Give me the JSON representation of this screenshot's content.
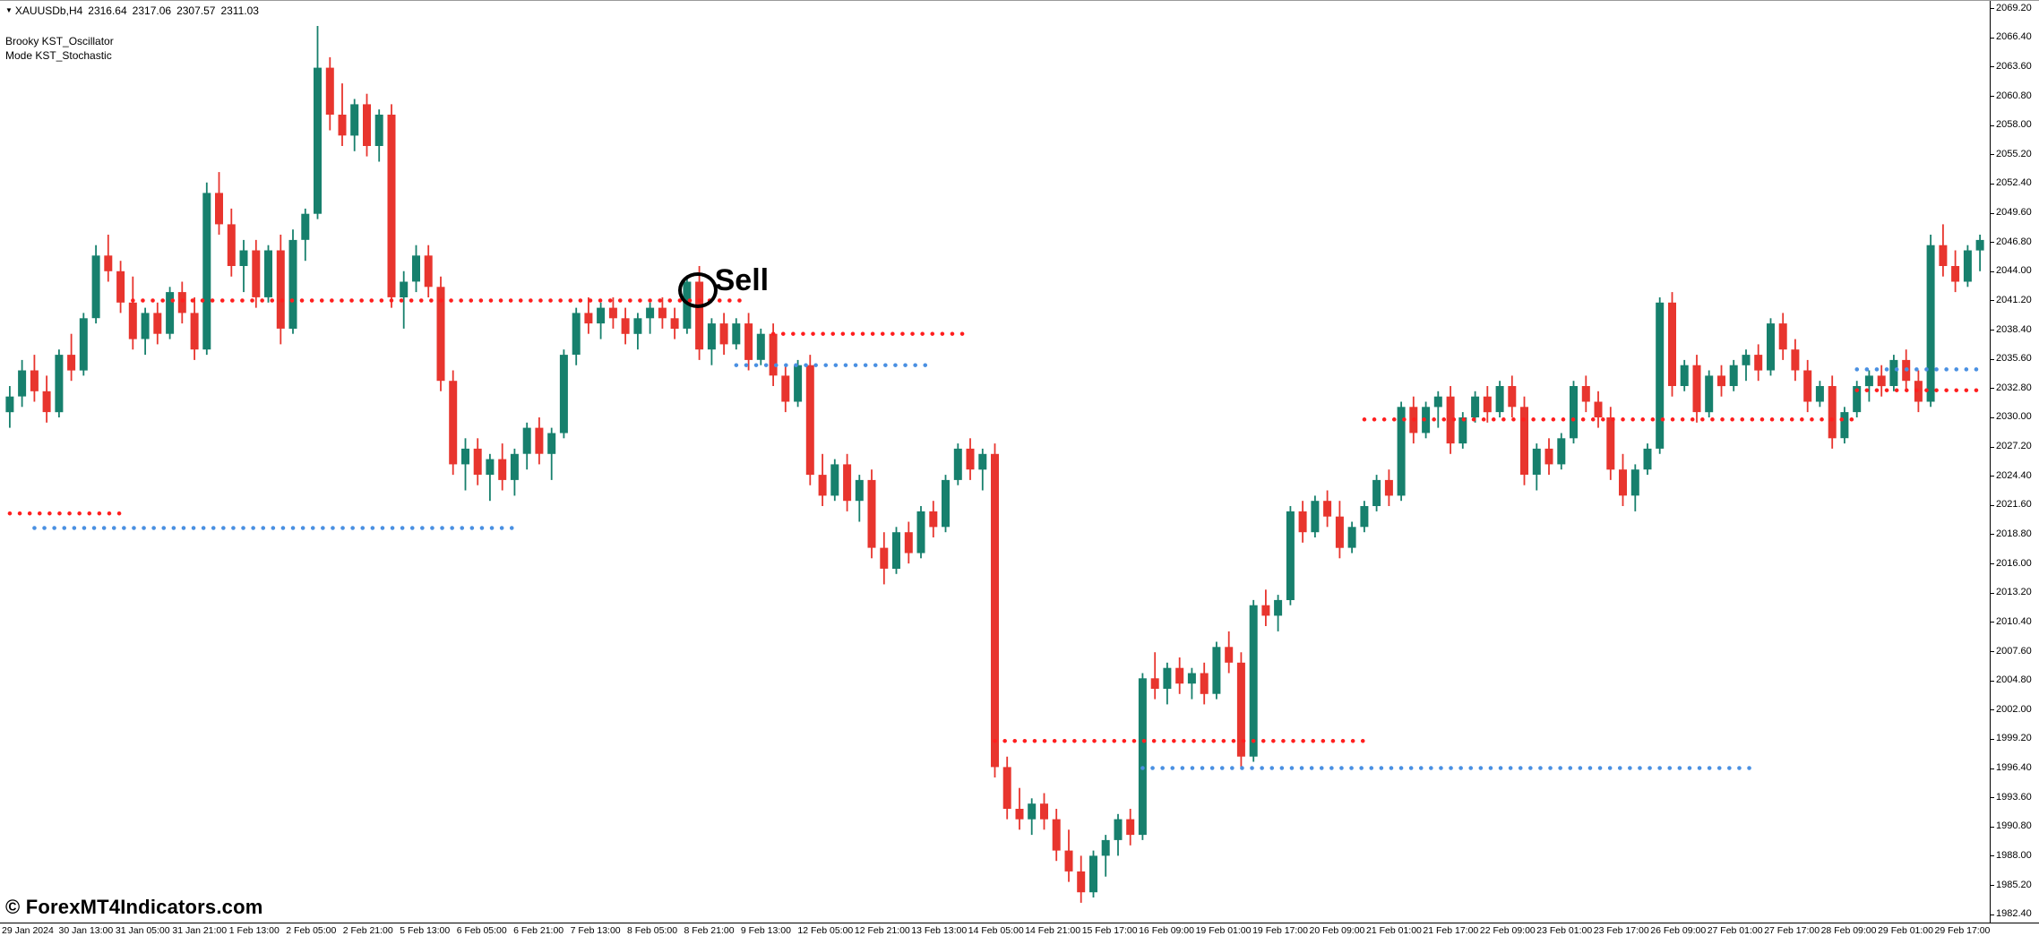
{
  "window": {
    "symbol": "XAUUSDb,H4",
    "ohlc": {
      "open": "2316.64",
      "high": "2317.06",
      "low": "2307.57",
      "close": "2311.03"
    }
  },
  "indicator": {
    "line1": "Brooky KST_Oscillator",
    "line2": "Mode KST_Stochastic"
  },
  "watermark": "© ForexMT4Indicators.com",
  "annotations": {
    "sell": {
      "label": "Sell",
      "candle_index": 56,
      "price": 2042.0
    }
  },
  "colors": {
    "background": "#ffffff",
    "bull": "#17806d",
    "bear": "#e8352e",
    "signal_red": "#ff1f1f",
    "signal_blue": "#4a90e2",
    "axis_text": "#000000"
  },
  "chart_data": {
    "type": "candlestick",
    "symbol": "XAUUSDb",
    "timeframe": "H4",
    "grid": "off",
    "legend": "none",
    "price_min": 1981.6,
    "price_max": 2069.9,
    "price_label_step": 2.8,
    "price_axis_labels": [
      "2069.20",
      "2066.40",
      "2063.60",
      "2060.80",
      "2058.00",
      "2055.20",
      "2052.40",
      "2049.60",
      "2046.80",
      "2044.00",
      "2041.20",
      "2038.40",
      "2035.60",
      "2032.80",
      "2030.00",
      "2027.20",
      "2024.40",
      "2021.60",
      "2018.80",
      "2016.00",
      "2013.20",
      "2010.40",
      "2007.60",
      "2004.80",
      "2002.00",
      "1999.20",
      "1996.40",
      "1993.60",
      "1990.80",
      "1988.00",
      "1985.20",
      "1982.40"
    ],
    "time_axis_labels": [
      "29 Jan 2024",
      "30 Jan 13:00",
      "31 Jan 05:00",
      "31 Jan 21:00",
      "1 Feb 13:00",
      "2 Feb 05:00",
      "2 Feb 21:00",
      "5 Feb 13:00",
      "6 Feb 05:00",
      "6 Feb 21:00",
      "7 Feb 13:00",
      "8 Feb 05:00",
      "8 Feb 21:00",
      "9 Feb 13:00",
      "12 Feb 05:00",
      "12 Feb 21:00",
      "13 Feb 13:00",
      "14 Feb 05:00",
      "14 Feb 21:00",
      "15 Feb 17:00",
      "16 Feb 09:00",
      "19 Feb 01:00",
      "19 Feb 17:00",
      "20 Feb 09:00",
      "21 Feb 01:00",
      "21 Feb 17:00",
      "22 Feb 09:00",
      "23 Feb 01:00",
      "23 Feb 17:00",
      "26 Feb 09:00",
      "27 Feb 01:00",
      "27 Feb 17:00",
      "28 Feb 09:00",
      "29 Feb 01:00",
      "29 Feb 17:00"
    ],
    "candles": [
      [
        2030.5,
        2033.0,
        2029.0,
        2032.0
      ],
      [
        2032.0,
        2035.5,
        2031.0,
        2034.5
      ],
      [
        2034.5,
        2036.0,
        2031.5,
        2032.5
      ],
      [
        2032.5,
        2034.0,
        2029.5,
        2030.5
      ],
      [
        2030.5,
        2036.5,
        2030.0,
        2036.0
      ],
      [
        2036.0,
        2038.0,
        2033.5,
        2034.5
      ],
      [
        2034.5,
        2040.0,
        2034.0,
        2039.5
      ],
      [
        2039.5,
        2046.5,
        2039.0,
        2045.5
      ],
      [
        2045.5,
        2047.5,
        2043.0,
        2044.0
      ],
      [
        2044.0,
        2045.0,
        2040.0,
        2041.0
      ],
      [
        2041.0,
        2043.5,
        2036.5,
        2037.5
      ],
      [
        2037.5,
        2040.5,
        2036.0,
        2040.0
      ],
      [
        2040.0,
        2041.0,
        2037.0,
        2038.0
      ],
      [
        2038.0,
        2042.5,
        2037.5,
        2042.0
      ],
      [
        2042.0,
        2043.0,
        2039.0,
        2040.0
      ],
      [
        2040.0,
        2041.5,
        2035.5,
        2036.5
      ],
      [
        2036.5,
        2052.5,
        2036.0,
        2051.5
      ],
      [
        2051.5,
        2053.5,
        2047.5,
        2048.5
      ],
      [
        2048.5,
        2050.0,
        2043.5,
        2044.5
      ],
      [
        2044.5,
        2047.0,
        2042.0,
        2046.0
      ],
      [
        2046.0,
        2047.0,
        2040.5,
        2041.5
      ],
      [
        2041.5,
        2046.5,
        2041.0,
        2046.0
      ],
      [
        2046.0,
        2047.5,
        2037.0,
        2038.5
      ],
      [
        2038.5,
        2048.0,
        2038.0,
        2047.0
      ],
      [
        2047.0,
        2050.0,
        2045.0,
        2049.5
      ],
      [
        2049.5,
        2067.5,
        2049.0,
        2063.5
      ],
      [
        2063.5,
        2064.5,
        2057.5,
        2059.0
      ],
      [
        2059.0,
        2062.0,
        2056.0,
        2057.0
      ],
      [
        2057.0,
        2060.5,
        2055.5,
        2060.0
      ],
      [
        2060.0,
        2061.0,
        2055.0,
        2056.0
      ],
      [
        2056.0,
        2059.5,
        2054.5,
        2059.0
      ],
      [
        2059.0,
        2060.0,
        2040.5,
        2041.5
      ],
      [
        2041.5,
        2044.0,
        2038.5,
        2043.0
      ],
      [
        2043.0,
        2046.5,
        2042.0,
        2045.5
      ],
      [
        2045.5,
        2046.5,
        2041.5,
        2042.5
      ],
      [
        2042.5,
        2043.5,
        2032.5,
        2033.5
      ],
      [
        2033.5,
        2034.5,
        2024.5,
        2025.5
      ],
      [
        2025.5,
        2028.0,
        2023.0,
        2027.0
      ],
      [
        2027.0,
        2028.0,
        2023.5,
        2024.5
      ],
      [
        2024.5,
        2026.5,
        2022.0,
        2026.0
      ],
      [
        2026.0,
        2027.5,
        2023.0,
        2024.0
      ],
      [
        2024.0,
        2027.0,
        2022.5,
        2026.5
      ],
      [
        2026.5,
        2029.5,
        2025.0,
        2029.0
      ],
      [
        2029.0,
        2030.0,
        2025.5,
        2026.5
      ],
      [
        2026.5,
        2029.0,
        2024.0,
        2028.5
      ],
      [
        2028.5,
        2036.5,
        2028.0,
        2036.0
      ],
      [
        2036.0,
        2040.5,
        2035.0,
        2040.0
      ],
      [
        2040.0,
        2041.5,
        2038.0,
        2039.0
      ],
      [
        2039.0,
        2041.0,
        2037.5,
        2040.5
      ],
      [
        2040.5,
        2041.5,
        2038.5,
        2039.5
      ],
      [
        2039.5,
        2040.5,
        2037.0,
        2038.0
      ],
      [
        2038.0,
        2040.0,
        2036.5,
        2039.5
      ],
      [
        2039.5,
        2041.0,
        2038.0,
        2040.5
      ],
      [
        2040.5,
        2041.5,
        2038.5,
        2039.5
      ],
      [
        2039.5,
        2040.5,
        2037.5,
        2038.5
      ],
      [
        2038.5,
        2043.5,
        2038.0,
        2043.0
      ],
      [
        2043.0,
        2044.5,
        2035.5,
        2036.5
      ],
      [
        2036.5,
        2039.5,
        2035.0,
        2039.0
      ],
      [
        2039.0,
        2040.0,
        2036.0,
        2037.0
      ],
      [
        2037.0,
        2039.5,
        2036.5,
        2039.0
      ],
      [
        2039.0,
        2040.0,
        2034.5,
        2035.5
      ],
      [
        2035.5,
        2038.5,
        2035.0,
        2038.0
      ],
      [
        2038.0,
        2039.0,
        2033.0,
        2034.0
      ],
      [
        2034.0,
        2035.0,
        2030.5,
        2031.5
      ],
      [
        2031.5,
        2035.5,
        2031.0,
        2035.0
      ],
      [
        2035.0,
        2036.0,
        2023.5,
        2024.5
      ],
      [
        2024.5,
        2026.5,
        2021.5,
        2022.5
      ],
      [
        2022.5,
        2026.0,
        2022.0,
        2025.5
      ],
      [
        2025.5,
        2026.5,
        2021.0,
        2022.0
      ],
      [
        2022.0,
        2024.5,
        2020.0,
        2024.0
      ],
      [
        2024.0,
        2025.0,
        2016.5,
        2017.5
      ],
      [
        2017.5,
        2019.0,
        2014.0,
        2015.5
      ],
      [
        2015.5,
        2019.5,
        2015.0,
        2019.0
      ],
      [
        2019.0,
        2020.0,
        2016.0,
        2017.0
      ],
      [
        2017.0,
        2021.5,
        2016.5,
        2021.0
      ],
      [
        2021.0,
        2022.0,
        2018.5,
        2019.5
      ],
      [
        2019.5,
        2024.5,
        2019.0,
        2024.0
      ],
      [
        2024.0,
        2027.5,
        2023.5,
        2027.0
      ],
      [
        2027.0,
        2028.0,
        2024.0,
        2025.0
      ],
      [
        2025.0,
        2027.0,
        2023.0,
        2026.5
      ],
      [
        2026.5,
        2027.5,
        1995.5,
        1996.5
      ],
      [
        1996.5,
        1997.5,
        1991.5,
        1992.5
      ],
      [
        1992.5,
        1994.5,
        1990.5,
        1991.5
      ],
      [
        1991.5,
        1993.5,
        1990.0,
        1993.0
      ],
      [
        1993.0,
        1994.0,
        1990.5,
        1991.5
      ],
      [
        1991.5,
        1992.5,
        1987.5,
        1988.5
      ],
      [
        1988.5,
        1990.5,
        1985.5,
        1986.5
      ],
      [
        1986.5,
        1988.0,
        1983.5,
        1984.5
      ],
      [
        1984.5,
        1988.5,
        1984.0,
        1988.0
      ],
      [
        1988.0,
        1990.0,
        1986.0,
        1989.5
      ],
      [
        1989.5,
        1992.0,
        1988.0,
        1991.5
      ],
      [
        1991.5,
        1992.5,
        1989.0,
        1990.0
      ],
      [
        1990.0,
        2005.5,
        1989.5,
        2005.0
      ],
      [
        2005.0,
        2007.5,
        2003.0,
        2004.0
      ],
      [
        2004.0,
        2006.5,
        2002.5,
        2006.0
      ],
      [
        2006.0,
        2007.0,
        2003.5,
        2004.5
      ],
      [
        2004.5,
        2006.0,
        2003.0,
        2005.5
      ],
      [
        2005.5,
        2006.5,
        2002.5,
        2003.5
      ],
      [
        2003.5,
        2008.5,
        2003.0,
        2008.0
      ],
      [
        2008.0,
        2009.5,
        2005.5,
        2006.5
      ],
      [
        2006.5,
        2007.5,
        1996.5,
        1997.5
      ],
      [
        1997.5,
        2012.5,
        1997.0,
        2012.0
      ],
      [
        2012.0,
        2013.5,
        2010.0,
        2011.0
      ],
      [
        2011.0,
        2013.0,
        2009.5,
        2012.5
      ],
      [
        2012.5,
        2021.5,
        2012.0,
        2021.0
      ],
      [
        2021.0,
        2022.0,
        2018.0,
        2019.0
      ],
      [
        2019.0,
        2022.5,
        2018.5,
        2022.0
      ],
      [
        2022.0,
        2023.0,
        2019.5,
        2020.5
      ],
      [
        2020.5,
        2022.0,
        2016.5,
        2017.5
      ],
      [
        2017.5,
        2020.0,
        2017.0,
        2019.5
      ],
      [
        2019.5,
        2022.0,
        2019.0,
        2021.5
      ],
      [
        2021.5,
        2024.5,
        2021.0,
        2024.0
      ],
      [
        2024.0,
        2025.0,
        2021.5,
        2022.5
      ],
      [
        2022.5,
        2031.5,
        2022.0,
        2031.0
      ],
      [
        2031.0,
        2032.0,
        2027.5,
        2028.5
      ],
      [
        2028.5,
        2031.5,
        2028.0,
        2031.0
      ],
      [
        2031.0,
        2032.5,
        2029.0,
        2032.0
      ],
      [
        2032.0,
        2033.0,
        2026.5,
        2027.5
      ],
      [
        2027.5,
        2030.5,
        2027.0,
        2030.0
      ],
      [
        2030.0,
        2032.5,
        2029.5,
        2032.0
      ],
      [
        2032.0,
        2033.0,
        2029.5,
        2030.5
      ],
      [
        2030.5,
        2033.5,
        2030.0,
        2033.0
      ],
      [
        2033.0,
        2034.0,
        2030.0,
        2031.0
      ],
      [
        2031.0,
        2032.0,
        2023.5,
        2024.5
      ],
      [
        2024.5,
        2027.5,
        2023.0,
        2027.0
      ],
      [
        2027.0,
        2028.0,
        2024.5,
        2025.5
      ],
      [
        2025.5,
        2028.5,
        2025.0,
        2028.0
      ],
      [
        2028.0,
        2033.5,
        2027.5,
        2033.0
      ],
      [
        2033.0,
        2034.0,
        2030.5,
        2031.5
      ],
      [
        2031.5,
        2032.5,
        2029.0,
        2030.0
      ],
      [
        2030.0,
        2031.0,
        2024.0,
        2025.0
      ],
      [
        2025.0,
        2026.5,
        2021.5,
        2022.5
      ],
      [
        2022.5,
        2025.5,
        2021.0,
        2025.0
      ],
      [
        2025.0,
        2027.5,
        2024.5,
        2027.0
      ],
      [
        2027.0,
        2041.5,
        2026.5,
        2041.0
      ],
      [
        2041.0,
        2042.0,
        2032.0,
        2033.0
      ],
      [
        2033.0,
        2035.5,
        2032.5,
        2035.0
      ],
      [
        2035.0,
        2036.0,
        2029.5,
        2030.5
      ],
      [
        2030.5,
        2034.5,
        2030.0,
        2034.0
      ],
      [
        2034.0,
        2035.0,
        2032.0,
        2033.0
      ],
      [
        2033.0,
        2035.5,
        2032.5,
        2035.0
      ],
      [
        2035.0,
        2036.5,
        2033.5,
        2036.0
      ],
      [
        2036.0,
        2037.0,
        2033.5,
        2034.5
      ],
      [
        2034.5,
        2039.5,
        2034.0,
        2039.0
      ],
      [
        2039.0,
        2040.0,
        2035.5,
        2036.5
      ],
      [
        2036.5,
        2037.5,
        2033.5,
        2034.5
      ],
      [
        2034.5,
        2035.5,
        2030.5,
        2031.5
      ],
      [
        2031.5,
        2033.5,
        2031.0,
        2033.0
      ],
      [
        2033.0,
        2034.0,
        2027.0,
        2028.0
      ],
      [
        2028.0,
        2031.0,
        2027.5,
        2030.5
      ],
      [
        2030.5,
        2033.5,
        2030.0,
        2033.0
      ],
      [
        2033.0,
        2034.5,
        2031.5,
        2034.0
      ],
      [
        2034.0,
        2035.0,
        2032.0,
        2033.0
      ],
      [
        2033.0,
        2036.0,
        2032.5,
        2035.5
      ],
      [
        2035.5,
        2036.5,
        2032.5,
        2033.5
      ],
      [
        2033.5,
        2034.5,
        2030.5,
        2031.5
      ],
      [
        2031.5,
        2047.5,
        2031.0,
        2046.5
      ],
      [
        2046.5,
        2048.5,
        2043.5,
        2044.5
      ],
      [
        2044.5,
        2046.0,
        2042.0,
        2043.0
      ],
      [
        2043.0,
        2046.5,
        2042.5,
        2046.0
      ],
      [
        2046.0,
        2047.5,
        2044.0,
        2047.0
      ]
    ],
    "signals": [
      {
        "color": "red",
        "price": 2020.8,
        "from": 0,
        "to": 9
      },
      {
        "color": "blue",
        "price": 2019.4,
        "from": 2,
        "to": 41
      },
      {
        "color": "red",
        "price": 2041.2,
        "from": 10,
        "to": 60
      },
      {
        "color": "blue",
        "price": 2035.0,
        "from": 59,
        "to": 75
      },
      {
        "color": "red",
        "price": 2038.0,
        "from": 62,
        "to": 78
      },
      {
        "color": "red",
        "price": 1999.0,
        "from": 80,
        "to": 110
      },
      {
        "color": "blue",
        "price": 1996.4,
        "from": 92,
        "to": 142
      },
      {
        "color": "red",
        "price": 2029.8,
        "from": 110,
        "to": 150
      },
      {
        "color": "blue",
        "price": 2034.6,
        "from": 150,
        "to": 160
      },
      {
        "color": "red",
        "price": 2032.6,
        "from": 150,
        "to": 160
      }
    ]
  }
}
